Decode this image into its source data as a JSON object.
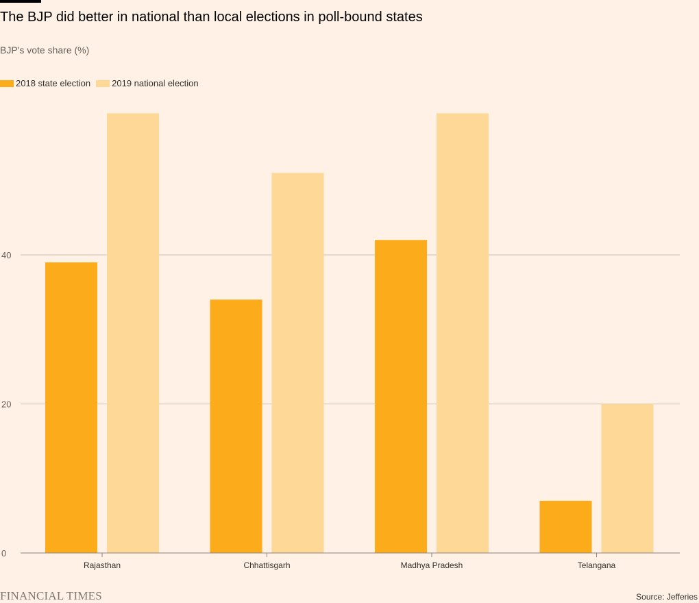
{
  "title": "The BJP did better in national than local elections in poll-bound states",
  "subtitle": "BJP's vote share (%)",
  "source": "Source: Jefferies",
  "brand": "FINANCIAL TIMES",
  "colors": {
    "background": "#fff1e5",
    "series_2018": "#fcab1a",
    "series_2019": "#fed896",
    "grid": "#ccc1b7",
    "axis": "#8a837d"
  },
  "chart_data": {
    "type": "bar",
    "categories": [
      "Rajasthan",
      "Chhattisgarh",
      "Madhya Pradesh",
      "Telangana"
    ],
    "series": [
      {
        "name": "2018 state election",
        "values": [
          39,
          34,
          42,
          7
        ]
      },
      {
        "name": "2019 national election",
        "values": [
          59,
          51,
          59,
          20
        ]
      }
    ],
    "y_ticks": [
      0,
      20,
      40
    ],
    "ylim": [
      0,
      60
    ],
    "grid": true,
    "legend_position": "top-left"
  }
}
